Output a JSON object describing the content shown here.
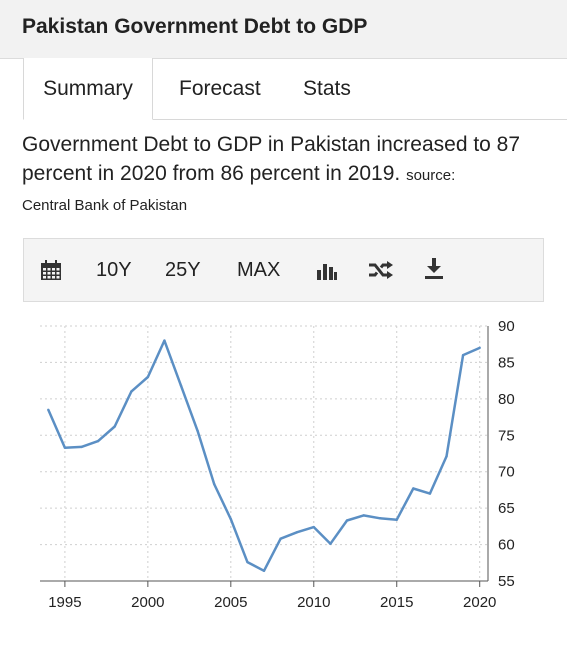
{
  "header": {
    "title": "Pakistan Government Debt to GDP"
  },
  "tabs": [
    {
      "label": "Summary"
    },
    {
      "label": "Forecast"
    },
    {
      "label": "Stats"
    }
  ],
  "description": {
    "text": "Government Debt to GDP in Pakistan increased to 87 percent in 2020 from 86 percent in 2019.",
    "source_label": "source:",
    "source_name": "Central Bank of Pakistan"
  },
  "toolbar": {
    "range_10y": "10Y",
    "range_25y": "25Y",
    "range_max": "MAX",
    "icons": [
      "calendar-icon",
      "bar-chart-icon",
      "shuffle-icon",
      "download-icon"
    ]
  },
  "chart_data": {
    "type": "line",
    "title": "",
    "xlabel": "",
    "ylabel": "",
    "x": [
      1994,
      1995,
      1996,
      1997,
      1998,
      1999,
      2000,
      2001,
      2002,
      2003,
      2004,
      2005,
      2006,
      2007,
      2008,
      2009,
      2010,
      2011,
      2012,
      2013,
      2014,
      2015,
      2016,
      2017,
      2018,
      2019,
      2020
    ],
    "series": [
      {
        "values": [
          78.5,
          73.3,
          73.4,
          74.2,
          76.2,
          81.0,
          83.0,
          88.0,
          81.8,
          75.6,
          68.3,
          63.5,
          57.6,
          56.4,
          60.8,
          61.7,
          62.4,
          60.1,
          63.3,
          64.0,
          63.6,
          63.4,
          67.7,
          67.0,
          72.1,
          86.0,
          87.0
        ]
      }
    ],
    "xlim": [
      1993.5,
      2020.5
    ],
    "ylim": [
      55,
      90
    ],
    "x_ticks": [
      1995,
      2000,
      2005,
      2010,
      2015,
      2020
    ],
    "y_ticks": [
      55,
      60,
      65,
      70,
      75,
      80,
      85,
      90
    ],
    "grid": true,
    "y_axis_side": "right",
    "line_color": "#5b8fc4"
  }
}
